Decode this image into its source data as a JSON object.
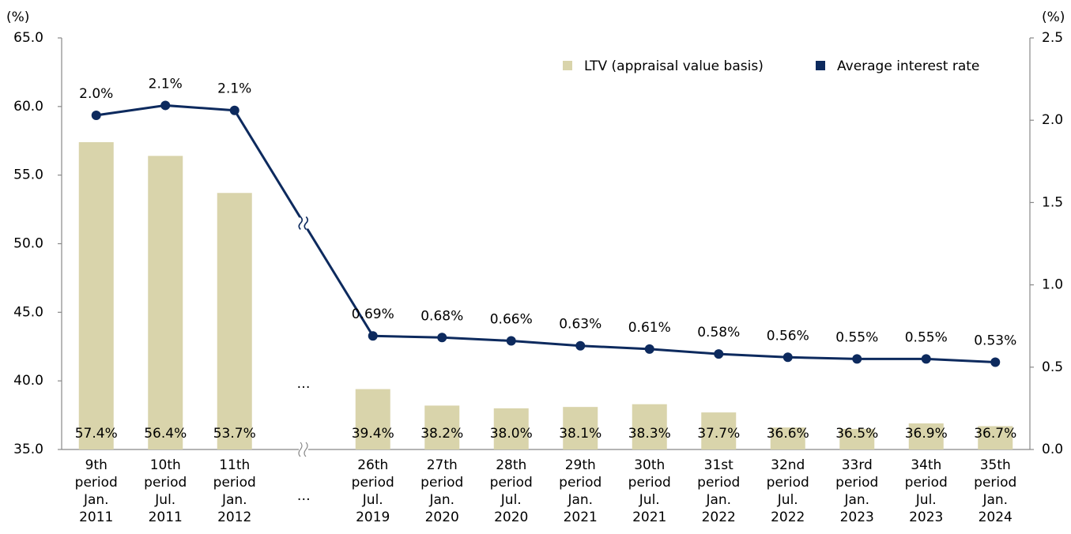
{
  "chart_data": {
    "type": "bar_line",
    "y_label": "(%)",
    "y2_label": "(%)",
    "annotations": [
      "…"
    ],
    "categories": [
      [
        "9th",
        "period",
        "Jan.",
        "2011"
      ],
      [
        "10th",
        "period",
        "Jul.",
        "2011"
      ],
      [
        "11th",
        "period",
        "Jan.",
        "2012"
      ],
      [
        "…"
      ],
      [
        "26th",
        "period",
        "Jul.",
        "2019"
      ],
      [
        "27th",
        "period",
        "Jan.",
        "2020"
      ],
      [
        "28th",
        "period",
        "Jul.",
        "2020"
      ],
      [
        "29th",
        "period",
        "Jan.",
        "2021"
      ],
      [
        "30th",
        "period",
        "Jul.",
        "2021"
      ],
      [
        "31st",
        "period",
        "Jan.",
        "2022"
      ],
      [
        "32nd",
        "period",
        "Jul.",
        "2022"
      ],
      [
        "33rd",
        "period",
        "Jan.",
        "2023"
      ],
      [
        "34th",
        "period",
        "Jul.",
        "2023"
      ],
      [
        "35th",
        "period",
        "Jan.",
        "2024"
      ]
    ],
    "series": [
      {
        "name": "LTV (appraisal value basis)",
        "type": "bar",
        "color": "#d9d4ab",
        "values": [
          57.4,
          56.4,
          53.7,
          null,
          39.4,
          38.2,
          38.0,
          38.1,
          38.3,
          37.7,
          36.6,
          36.5,
          36.9,
          36.7
        ],
        "value_labels": [
          "57.4%",
          "56.4%",
          "53.7%",
          null,
          "39.4%",
          "38.2%",
          "38.0%",
          "38.1%",
          "38.3%",
          "37.7%",
          "36.6%",
          "36.5%",
          "36.9%",
          "36.7%"
        ]
      },
      {
        "name": "Average interest rate",
        "type": "line",
        "axis": "y2",
        "color": "#0d2a5e",
        "values": [
          2.03,
          2.09,
          2.06,
          null,
          0.69,
          0.68,
          0.66,
          0.63,
          0.61,
          0.58,
          0.56,
          0.55,
          0.55,
          0.53
        ],
        "value_labels": [
          "2.0%",
          "2.1%",
          "2.1%",
          null,
          "0.69%",
          "0.68%",
          "0.66%",
          "0.63%",
          "0.61%",
          "0.58%",
          "0.56%",
          "0.55%",
          "0.55%",
          "0.53%"
        ]
      }
    ],
    "ylim": [
      35,
      65
    ],
    "yticks": [
      {
        "value": 35,
        "label": "35.0"
      },
      {
        "value": 40,
        "label": "40.0"
      },
      {
        "value": 45,
        "label": "45.0"
      },
      {
        "value": 50,
        "label": "50.0"
      },
      {
        "value": 55,
        "label": "55.0"
      },
      {
        "value": 60,
        "label": "60.0"
      },
      {
        "value": 65,
        "label": "65.0"
      }
    ],
    "y2lim": [
      0,
      2.5
    ],
    "y2ticks": [
      {
        "value": 0,
        "label": "0.0"
      },
      {
        "value": 0.5,
        "label": "0.5"
      },
      {
        "value": 1,
        "label": "1.0"
      },
      {
        "value": 1.5,
        "label": "1.5"
      },
      {
        "value": 2,
        "label": "2.0"
      },
      {
        "value": 2.5,
        "label": "2.5"
      }
    ],
    "legend": "top-right"
  }
}
